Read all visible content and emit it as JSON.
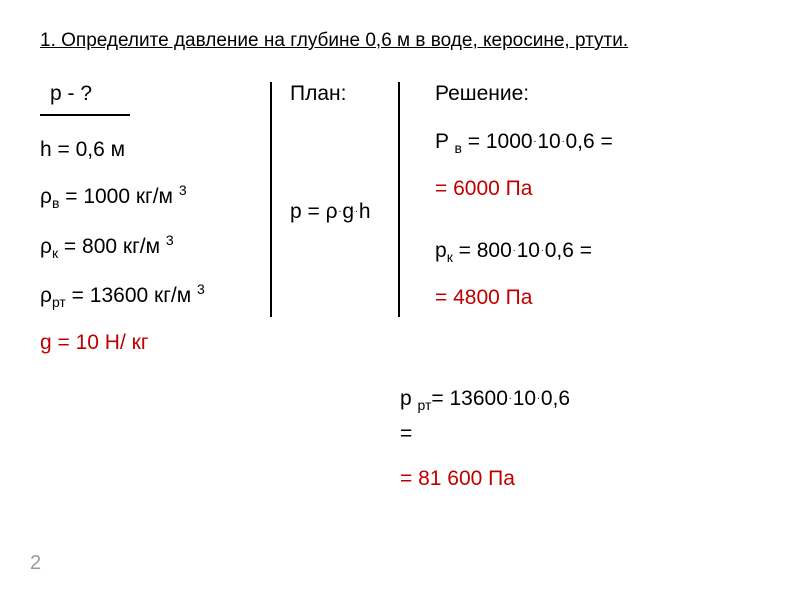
{
  "title": "1. Определите давление на глубине 0,6 м в воде, керосине, ртути.",
  "given": {
    "find": "p - ?",
    "h": "h = 0,6 м",
    "rho_v": "ρ",
    "rho_v_sub": "в",
    "rho_v_val": " = 1000 кг/м ",
    "rho_k": " ρ",
    "rho_k_sub": "к",
    "rho_k_val": " = 800 кг/м ",
    "rho_rt": " ρ",
    "rho_rt_sub": "рт",
    "rho_rt_val": " = 13600 кг/м ",
    "cube": "3",
    "g": "g = 10 Н/ кг"
  },
  "plan": {
    "header": "План:",
    "formula_p": "p = ρ",
    "formula_g": "g",
    "formula_h": "h"
  },
  "solution": {
    "header": "Решение:",
    "pv_lhs": "P ",
    "pv_sub": "в",
    "pv_eq": " = 1000",
    "pv_10": "10",
    "pv_06": "0,6 =",
    "pv_result": "= 6000 Па",
    "pk_lhs": "p",
    "pk_sub": "к",
    "pk_eq": " = 800",
    "pk_10": "10",
    "pk_06": "0,6 =",
    "pk_result": "= 4800 Па",
    "prt_lhs": "p ",
    "prt_sub": "рт",
    "prt_eq": "= 13600",
    "prt_10": "10",
    "prt_06": "0,6",
    "prt_eq2": "=",
    "prt_result": "= 81 600 Па"
  },
  "page": "2",
  "colors": {
    "red": "#c00000",
    "black": "#000000",
    "gray": "#9a9a9a",
    "bg": "#ffffff"
  }
}
